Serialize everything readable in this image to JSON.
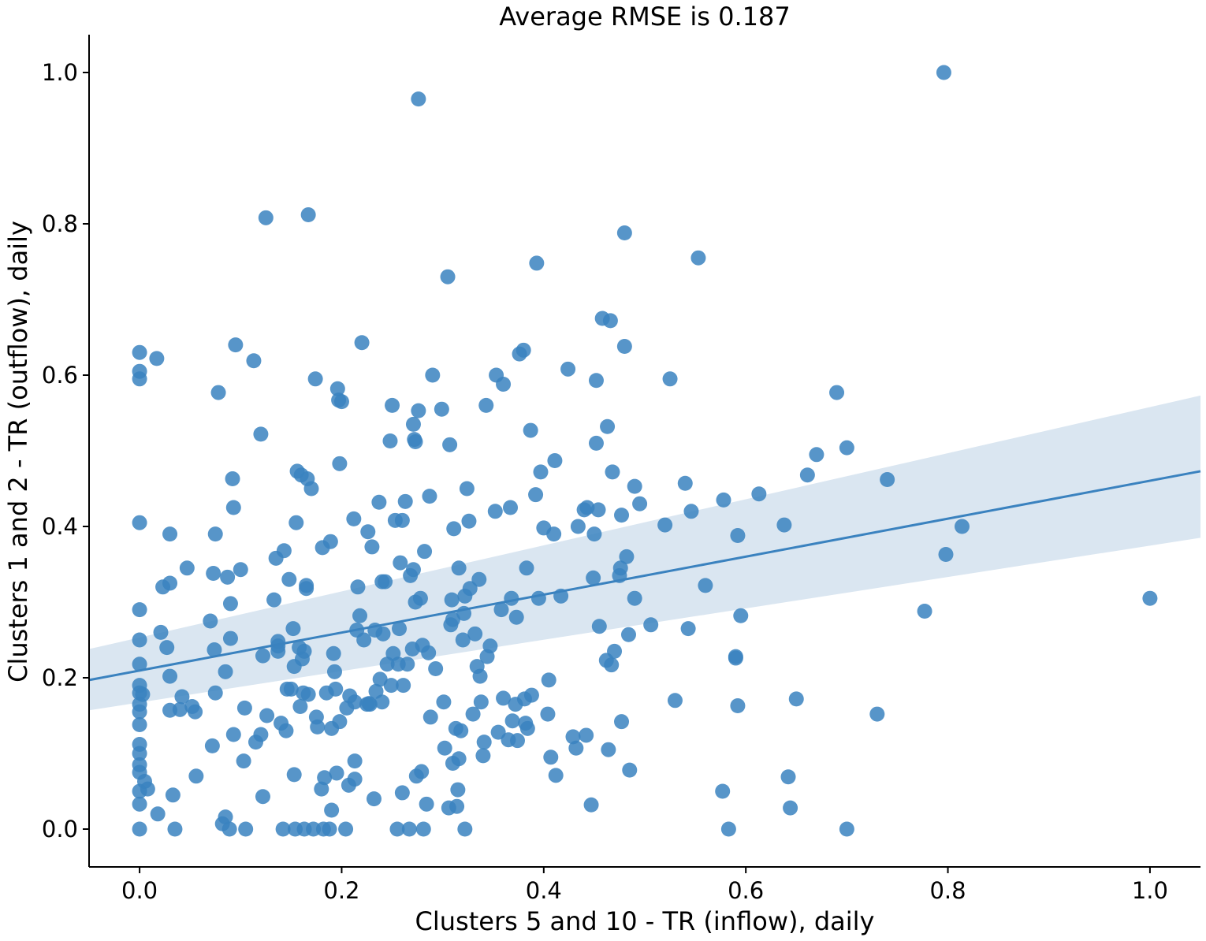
{
  "chart_data": {
    "type": "scatter",
    "title": "Average RMSE is 0.187",
    "xlabel": "Clusters 5 and 10 - TR (inflow), daily",
    "ylabel": "Clusters 1 and 2  - TR (outflow), daily",
    "xlim": [
      -0.05,
      1.05
    ],
    "ylim": [
      -0.05,
      1.05
    ],
    "xticks": [
      0.0,
      0.2,
      0.4,
      0.6,
      0.8,
      1.0
    ],
    "yticks": [
      0.0,
      0.2,
      0.4,
      0.6,
      0.8,
      1.0
    ],
    "tick_labels_x": [
      "0.0",
      "0.2",
      "0.4",
      "0.6",
      "0.8",
      "1.0"
    ],
    "tick_labels_y": [
      "0.0",
      "0.2",
      "0.4",
      "0.6",
      "0.8",
      "1.0"
    ],
    "grid": false,
    "colors": {
      "points": "#3a82bf",
      "line": "#3a82bf",
      "band": "#dae6f1"
    },
    "regression": {
      "x": [
        -0.05,
        1.05
      ],
      "y": [
        0.197,
        0.473
      ],
      "ci_lower": [
        0.157,
        0.385
      ],
      "ci_upper": [
        0.238,
        0.573
      ]
    },
    "points": [
      [
        0.0,
        0.63
      ],
      [
        0.0,
        0.605
      ],
      [
        0.0,
        0.595
      ],
      [
        0.0,
        0.405
      ],
      [
        0.0,
        0.29
      ],
      [
        0.0,
        0.25
      ],
      [
        0.0,
        0.218
      ],
      [
        0.0,
        0.19
      ],
      [
        0.0,
        0.18
      ],
      [
        0.0,
        0.165
      ],
      [
        0.0,
        0.155
      ],
      [
        0.0,
        0.138
      ],
      [
        0.0,
        0.112
      ],
      [
        0.0,
        0.1
      ],
      [
        0.0,
        0.085
      ],
      [
        0.0,
        0.075
      ],
      [
        0.0,
        0.05
      ],
      [
        0.0,
        0.033
      ],
      [
        0.0,
        0.0
      ],
      [
        0.003,
        0.178
      ],
      [
        0.005,
        0.063
      ],
      [
        0.008,
        0.053
      ],
      [
        0.017,
        0.622
      ],
      [
        0.018,
        0.02
      ],
      [
        0.021,
        0.26
      ],
      [
        0.023,
        0.32
      ],
      [
        0.027,
        0.24
      ],
      [
        0.03,
        0.39
      ],
      [
        0.03,
        0.202
      ],
      [
        0.03,
        0.157
      ],
      [
        0.03,
        0.325
      ],
      [
        0.033,
        0.045
      ],
      [
        0.035,
        0.0
      ],
      [
        0.04,
        0.158
      ],
      [
        0.042,
        0.175
      ],
      [
        0.047,
        0.345
      ],
      [
        0.052,
        0.162
      ],
      [
        0.055,
        0.155
      ],
      [
        0.056,
        0.07
      ],
      [
        0.07,
        0.275
      ],
      [
        0.072,
        0.11
      ],
      [
        0.073,
        0.338
      ],
      [
        0.074,
        0.237
      ],
      [
        0.075,
        0.39
      ],
      [
        0.075,
        0.18
      ],
      [
        0.078,
        0.577
      ],
      [
        0.082,
        0.007
      ],
      [
        0.085,
        0.016
      ],
      [
        0.085,
        0.208
      ],
      [
        0.087,
        0.333
      ],
      [
        0.089,
        0.0
      ],
      [
        0.09,
        0.298
      ],
      [
        0.09,
        0.252
      ],
      [
        0.092,
        0.463
      ],
      [
        0.093,
        0.425
      ],
      [
        0.093,
        0.125
      ],
      [
        0.095,
        0.64
      ],
      [
        0.1,
        0.343
      ],
      [
        0.103,
        0.09
      ],
      [
        0.104,
        0.16
      ],
      [
        0.105,
        0.0
      ],
      [
        0.113,
        0.619
      ],
      [
        0.115,
        0.115
      ],
      [
        0.12,
        0.522
      ],
      [
        0.12,
        0.125
      ],
      [
        0.122,
        0.229
      ],
      [
        0.122,
        0.043
      ],
      [
        0.125,
        0.808
      ],
      [
        0.126,
        0.15
      ],
      [
        0.133,
        0.303
      ],
      [
        0.135,
        0.358
      ],
      [
        0.137,
        0.248
      ],
      [
        0.137,
        0.235
      ],
      [
        0.137,
        0.242
      ],
      [
        0.14,
        0.14
      ],
      [
        0.142,
        0.0
      ],
      [
        0.143,
        0.368
      ],
      [
        0.145,
        0.13
      ],
      [
        0.146,
        0.185
      ],
      [
        0.148,
        0.33
      ],
      [
        0.15,
        0.185
      ],
      [
        0.152,
        0.265
      ],
      [
        0.153,
        0.072
      ],
      [
        0.153,
        0.215
      ],
      [
        0.154,
        0.0
      ],
      [
        0.155,
        0.405
      ],
      [
        0.156,
        0.473
      ],
      [
        0.158,
        0.24
      ],
      [
        0.159,
        0.162
      ],
      [
        0.16,
        0.468
      ],
      [
        0.161,
        0.225
      ],
      [
        0.162,
        0.18
      ],
      [
        0.163,
        0.0
      ],
      [
        0.163,
        0.235
      ],
      [
        0.165,
        0.322
      ],
      [
        0.165,
        0.318
      ],
      [
        0.166,
        0.463
      ],
      [
        0.167,
        0.812
      ],
      [
        0.167,
        0.178
      ],
      [
        0.17,
        0.45
      ],
      [
        0.172,
        0.0
      ],
      [
        0.174,
        0.595
      ],
      [
        0.175,
        0.148
      ],
      [
        0.176,
        0.135
      ],
      [
        0.18,
        0.053
      ],
      [
        0.181,
        0.372
      ],
      [
        0.182,
        0.0
      ],
      [
        0.183,
        0.068
      ],
      [
        0.185,
        0.18
      ],
      [
        0.188,
        0.0
      ],
      [
        0.189,
        0.38
      ],
      [
        0.19,
        0.025
      ],
      [
        0.19,
        0.133
      ],
      [
        0.192,
        0.232
      ],
      [
        0.193,
        0.208
      ],
      [
        0.194,
        0.185
      ],
      [
        0.195,
        0.074
      ],
      [
        0.196,
        0.582
      ],
      [
        0.197,
        0.567
      ],
      [
        0.198,
        0.142
      ],
      [
        0.198,
        0.483
      ],
      [
        0.2,
        0.565
      ],
      [
        0.204,
        0.0
      ],
      [
        0.205,
        0.16
      ],
      [
        0.207,
        0.058
      ],
      [
        0.208,
        0.176
      ],
      [
        0.212,
        0.41
      ],
      [
        0.213,
        0.168
      ],
      [
        0.213,
        0.09
      ],
      [
        0.213,
        0.066
      ],
      [
        0.215,
        0.263
      ],
      [
        0.216,
        0.32
      ],
      [
        0.218,
        0.282
      ],
      [
        0.22,
        0.643
      ],
      [
        0.222,
        0.25
      ],
      [
        0.225,
        0.165
      ],
      [
        0.226,
        0.393
      ],
      [
        0.227,
        0.166
      ],
      [
        0.228,
        0.165
      ],
      [
        0.23,
        0.373
      ],
      [
        0.232,
        0.04
      ],
      [
        0.233,
        0.263
      ],
      [
        0.234,
        0.182
      ],
      [
        0.237,
        0.432
      ],
      [
        0.238,
        0.198
      ],
      [
        0.24,
        0.168
      ],
      [
        0.24,
        0.327
      ],
      [
        0.241,
        0.258
      ],
      [
        0.243,
        0.327
      ],
      [
        0.245,
        0.218
      ],
      [
        0.248,
        0.513
      ],
      [
        0.249,
        0.19
      ],
      [
        0.25,
        0.56
      ],
      [
        0.251,
        0.232
      ],
      [
        0.253,
        0.408
      ],
      [
        0.255,
        0.0
      ],
      [
        0.256,
        0.218
      ],
      [
        0.257,
        0.265
      ],
      [
        0.258,
        0.352
      ],
      [
        0.26,
        0.408
      ],
      [
        0.26,
        0.048
      ],
      [
        0.261,
        0.19
      ],
      [
        0.263,
        0.433
      ],
      [
        0.265,
        0.218
      ],
      [
        0.267,
        0.0
      ],
      [
        0.268,
        0.335
      ],
      [
        0.27,
        0.238
      ],
      [
        0.271,
        0.535
      ],
      [
        0.271,
        0.343
      ],
      [
        0.272,
        0.515
      ],
      [
        0.273,
        0.512
      ],
      [
        0.273,
        0.3
      ],
      [
        0.274,
        0.07
      ],
      [
        0.276,
        0.553
      ],
      [
        0.276,
        0.965
      ],
      [
        0.278,
        0.305
      ],
      [
        0.279,
        0.076
      ],
      [
        0.28,
        0.243
      ],
      [
        0.281,
        0.0
      ],
      [
        0.282,
        0.367
      ],
      [
        0.284,
        0.033
      ],
      [
        0.286,
        0.233
      ],
      [
        0.287,
        0.44
      ],
      [
        0.288,
        0.148
      ],
      [
        0.29,
        0.6
      ],
      [
        0.293,
        0.212
      ],
      [
        0.299,
        0.555
      ],
      [
        0.301,
        0.168
      ],
      [
        0.302,
        0.107
      ],
      [
        0.305,
        0.73
      ],
      [
        0.306,
        0.028
      ],
      [
        0.307,
        0.508
      ],
      [
        0.308,
        0.27
      ],
      [
        0.309,
        0.303
      ],
      [
        0.31,
        0.087
      ],
      [
        0.31,
        0.277
      ],
      [
        0.311,
        0.397
      ],
      [
        0.313,
        0.133
      ],
      [
        0.314,
        0.03
      ],
      [
        0.315,
        0.052
      ],
      [
        0.316,
        0.345
      ],
      [
        0.316,
        0.093
      ],
      [
        0.318,
        0.13
      ],
      [
        0.32,
        0.25
      ],
      [
        0.321,
        0.285
      ],
      [
        0.322,
        0.0
      ],
      [
        0.322,
        0.308
      ],
      [
        0.324,
        0.45
      ],
      [
        0.326,
        0.407
      ],
      [
        0.327,
        0.318
      ],
      [
        0.33,
        0.152
      ],
      [
        0.332,
        0.258
      ],
      [
        0.334,
        0.215
      ],
      [
        0.336,
        0.33
      ],
      [
        0.337,
        0.202
      ],
      [
        0.338,
        0.168
      ],
      [
        0.34,
        0.097
      ],
      [
        0.341,
        0.115
      ],
      [
        0.343,
        0.56
      ],
      [
        0.344,
        0.228
      ],
      [
        0.347,
        0.242
      ],
      [
        0.352,
        0.42
      ],
      [
        0.353,
        0.6
      ],
      [
        0.355,
        0.128
      ],
      [
        0.358,
        0.29
      ],
      [
        0.36,
        0.588
      ],
      [
        0.36,
        0.173
      ],
      [
        0.365,
        0.118
      ],
      [
        0.367,
        0.425
      ],
      [
        0.368,
        0.305
      ],
      [
        0.369,
        0.143
      ],
      [
        0.372,
        0.165
      ],
      [
        0.373,
        0.28
      ],
      [
        0.374,
        0.117
      ],
      [
        0.376,
        0.628
      ],
      [
        0.38,
        0.633
      ],
      [
        0.381,
        0.172
      ],
      [
        0.382,
        0.14
      ],
      [
        0.383,
        0.345
      ],
      [
        0.384,
        0.133
      ],
      [
        0.387,
        0.527
      ],
      [
        0.388,
        0.177
      ],
      [
        0.392,
        0.442
      ],
      [
        0.393,
        0.748
      ],
      [
        0.395,
        0.305
      ],
      [
        0.397,
        0.472
      ],
      [
        0.4,
        0.398
      ],
      [
        0.404,
        0.152
      ],
      [
        0.405,
        0.197
      ],
      [
        0.407,
        0.095
      ],
      [
        0.41,
        0.39
      ],
      [
        0.411,
        0.487
      ],
      [
        0.412,
        0.071
      ],
      [
        0.417,
        0.308
      ],
      [
        0.424,
        0.608
      ],
      [
        0.429,
        0.122
      ],
      [
        0.432,
        0.107
      ],
      [
        0.434,
        0.4
      ],
      [
        0.44,
        0.422
      ],
      [
        0.442,
        0.124
      ],
      [
        0.443,
        0.425
      ],
      [
        0.447,
        0.032
      ],
      [
        0.449,
        0.332
      ],
      [
        0.45,
        0.39
      ],
      [
        0.452,
        0.51
      ],
      [
        0.452,
        0.593
      ],
      [
        0.454,
        0.422
      ],
      [
        0.455,
        0.268
      ],
      [
        0.458,
        0.675
      ],
      [
        0.462,
        0.223
      ],
      [
        0.463,
        0.532
      ],
      [
        0.464,
        0.105
      ],
      [
        0.466,
        0.672
      ],
      [
        0.467,
        0.217
      ],
      [
        0.468,
        0.472
      ],
      [
        0.47,
        0.235
      ],
      [
        0.475,
        0.335
      ],
      [
        0.476,
        0.345
      ],
      [
        0.477,
        0.142
      ],
      [
        0.477,
        0.415
      ],
      [
        0.48,
        0.638
      ],
      [
        0.48,
        0.788
      ],
      [
        0.482,
        0.36
      ],
      [
        0.484,
        0.257
      ],
      [
        0.485,
        0.078
      ],
      [
        0.49,
        0.305
      ],
      [
        0.49,
        0.453
      ],
      [
        0.495,
        0.43
      ],
      [
        0.506,
        0.27
      ],
      [
        0.52,
        0.402
      ],
      [
        0.525,
        0.595
      ],
      [
        0.53,
        0.17
      ],
      [
        0.553,
        0.755
      ],
      [
        0.54,
        0.457
      ],
      [
        0.543,
        0.265
      ],
      [
        0.546,
        0.42
      ],
      [
        0.56,
        0.322
      ],
      [
        0.577,
        0.05
      ],
      [
        0.578,
        0.435
      ],
      [
        0.583,
        0.0
      ],
      [
        0.59,
        0.226
      ],
      [
        0.59,
        0.228
      ],
      [
        0.592,
        0.163
      ],
      [
        0.592,
        0.388
      ],
      [
        0.595,
        0.282
      ],
      [
        0.613,
        0.443
      ],
      [
        0.638,
        0.402
      ],
      [
        0.642,
        0.069
      ],
      [
        0.644,
        0.028
      ],
      [
        0.65,
        0.172
      ],
      [
        0.661,
        0.468
      ],
      [
        0.67,
        0.495
      ],
      [
        0.69,
        0.577
      ],
      [
        0.7,
        0.504
      ],
      [
        0.7,
        0.0
      ],
      [
        0.73,
        0.152
      ],
      [
        0.74,
        0.462
      ],
      [
        0.777,
        0.288
      ],
      [
        0.796,
        1.0
      ],
      [
        0.798,
        0.363
      ],
      [
        0.814,
        0.4
      ],
      [
        1.0,
        0.305
      ]
    ]
  }
}
